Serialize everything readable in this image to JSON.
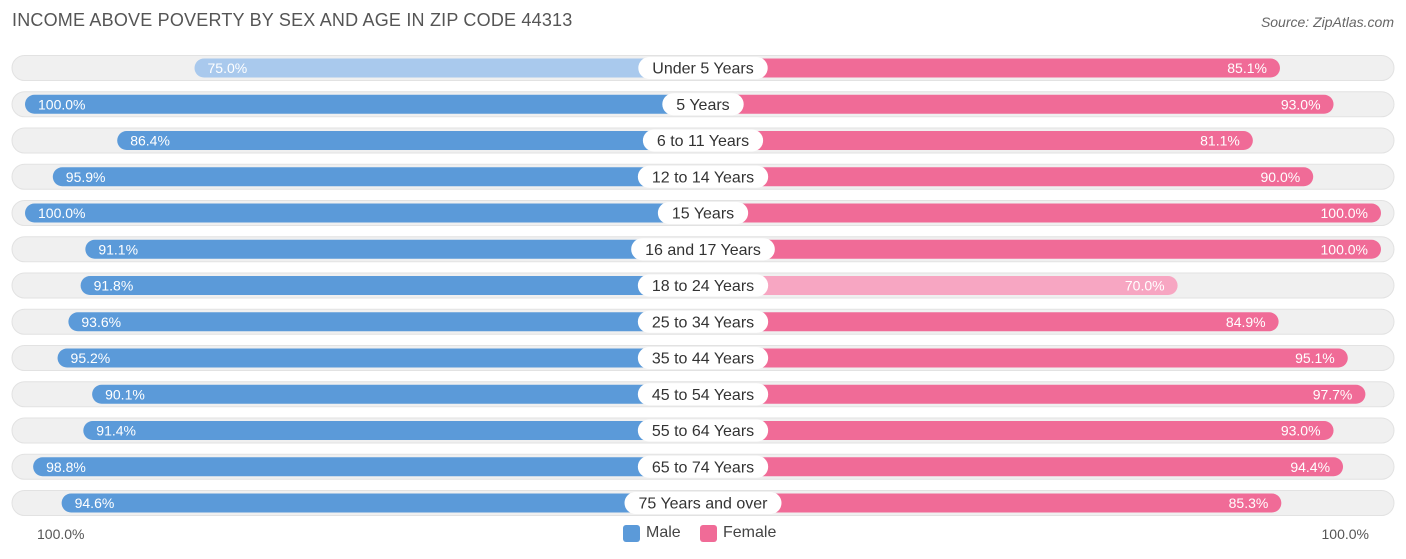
{
  "title": "INCOME ABOVE POVERTY BY SEX AND AGE IN ZIP CODE 44313",
  "source": "Source: ZipAtlas.com",
  "colors": {
    "male_strong": "#5b9ad9",
    "male_light": "#a9c9ed",
    "female_strong": "#f06b97",
    "female_light": "#f7a6c2",
    "track": "#f0f0f0",
    "track_border": "#e2e2e2"
  },
  "chart_data": {
    "type": "bar",
    "orientation": "horizontal-diverging",
    "categories": [
      "Under 5 Years",
      "5 Years",
      "6 to 11 Years",
      "12 to 14 Years",
      "15 Years",
      "16 and 17 Years",
      "18 to 24 Years",
      "25 to 34 Years",
      "35 to 44 Years",
      "45 to 54 Years",
      "55 to 64 Years",
      "65 to 74 Years",
      "75 Years and over"
    ],
    "series": [
      {
        "name": "Male",
        "values": [
          75.0,
          100.0,
          86.4,
          95.9,
          100.0,
          91.1,
          91.8,
          93.6,
          95.2,
          90.1,
          91.4,
          98.8,
          94.6
        ],
        "labels": [
          "75.0%",
          "100.0%",
          "86.4%",
          "95.9%",
          "100.0%",
          "91.1%",
          "91.8%",
          "93.6%",
          "95.2%",
          "90.1%",
          "91.4%",
          "98.8%",
          "94.6%"
        ]
      },
      {
        "name": "Female",
        "values": [
          85.1,
          93.0,
          81.1,
          90.0,
          100.0,
          100.0,
          70.0,
          84.9,
          95.1,
          97.7,
          93.0,
          94.4,
          85.3
        ],
        "labels": [
          "85.1%",
          "93.0%",
          "81.1%",
          "90.0%",
          "100.0%",
          "100.0%",
          "70.0%",
          "84.9%",
          "95.1%",
          "97.7%",
          "93.0%",
          "94.4%",
          "85.3%"
        ]
      }
    ],
    "xlim": [
      0,
      100
    ],
    "axis_left_label": "100.0%",
    "axis_right_label": "100.0%",
    "legend_placement": "bottom-center",
    "grid": false
  }
}
